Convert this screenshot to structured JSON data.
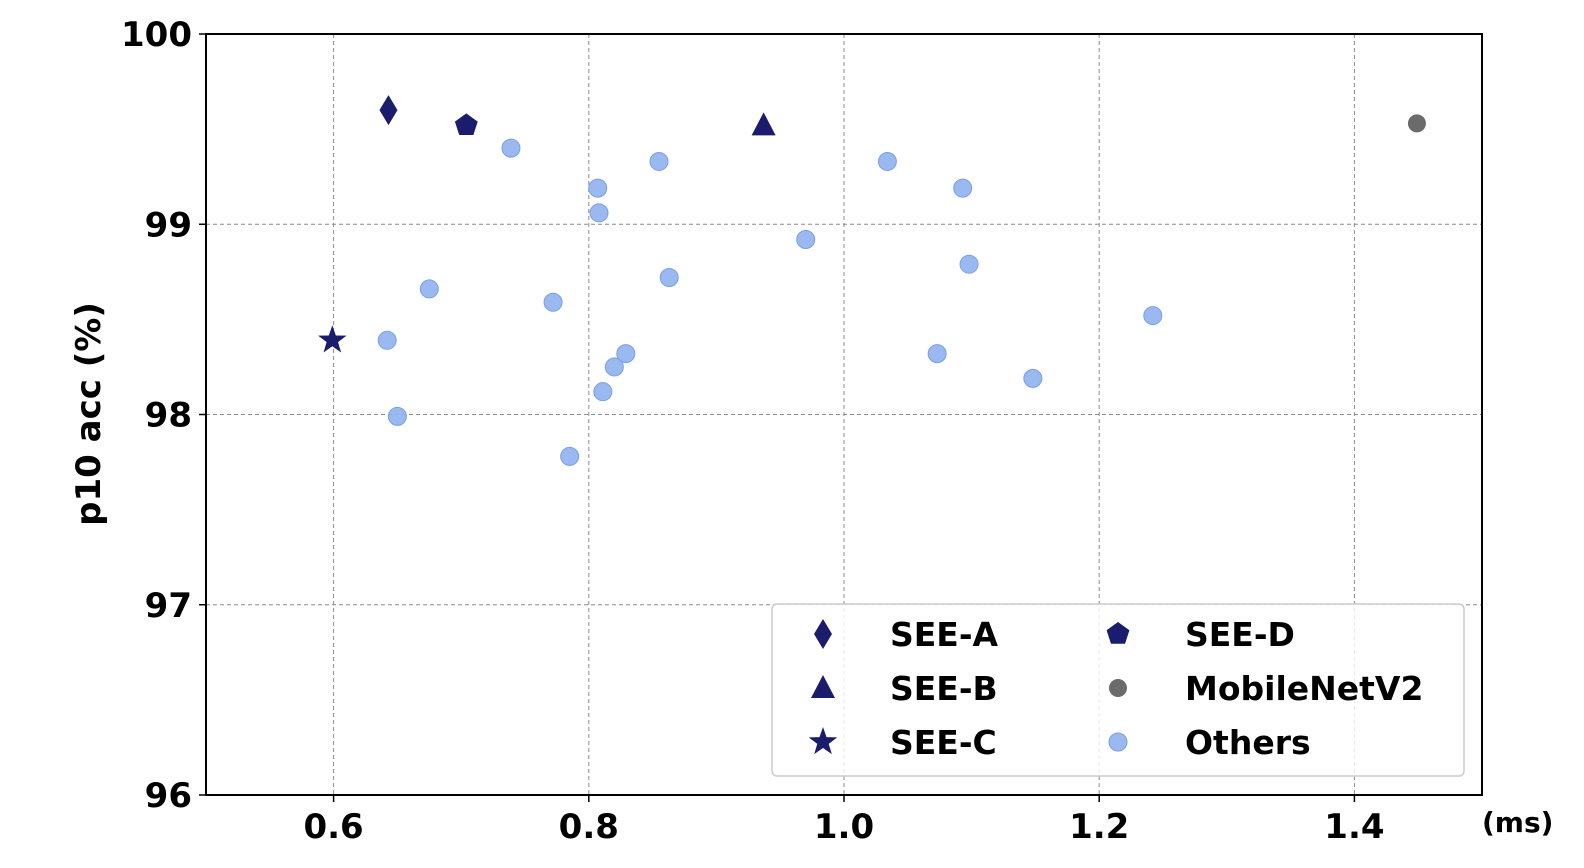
{
  "chart_data": {
    "type": "scatter",
    "xlim": [
      0.5,
      1.5
    ],
    "ylim": [
      96,
      100
    ],
    "xticks": [
      0.6,
      0.8,
      1.0,
      1.2,
      1.4
    ],
    "xtick_labels": [
      "0.6",
      "0.8",
      "1.0",
      "1.2",
      "1.4"
    ],
    "yticks": [
      96,
      97,
      98,
      99,
      100
    ],
    "ytick_labels": [
      "96",
      "97",
      "98",
      "99",
      "100"
    ],
    "xlabel": "(ms)",
    "ylabel": "p10 acc (%)",
    "grid": true,
    "legend_position": "lower-right",
    "series": [
      {
        "name": "SEE-A",
        "marker": "diamond",
        "color": "#1b1c6e",
        "points": [
          {
            "x": 0.643,
            "y": 99.6
          }
        ]
      },
      {
        "name": "SEE-B",
        "marker": "triangle",
        "color": "#1b1c6e",
        "points": [
          {
            "x": 0.937,
            "y": 99.52
          }
        ]
      },
      {
        "name": "SEE-C",
        "marker": "star",
        "color": "#1b1c6e",
        "points": [
          {
            "x": 0.599,
            "y": 98.39
          }
        ]
      },
      {
        "name": "SEE-D",
        "marker": "pentagon",
        "color": "#1b1c6e",
        "points": [
          {
            "x": 0.704,
            "y": 99.52
          }
        ]
      },
      {
        "name": "MobileNetV2",
        "marker": "circle",
        "color": "#6b6b6b",
        "points": [
          {
            "x": 1.449,
            "y": 99.53
          }
        ]
      },
      {
        "name": "Others",
        "marker": "circle",
        "color": "#8fb1ee",
        "points": [
          {
            "x": 0.739,
            "y": 99.4
          },
          {
            "x": 0.855,
            "y": 99.33
          },
          {
            "x": 0.807,
            "y": 99.19
          },
          {
            "x": 0.808,
            "y": 99.06
          },
          {
            "x": 1.034,
            "y": 99.33
          },
          {
            "x": 1.093,
            "y": 99.19
          },
          {
            "x": 0.97,
            "y": 98.92
          },
          {
            "x": 1.098,
            "y": 98.79
          },
          {
            "x": 0.863,
            "y": 98.72
          },
          {
            "x": 0.675,
            "y": 98.66
          },
          {
            "x": 0.772,
            "y": 98.59
          },
          {
            "x": 1.242,
            "y": 98.52
          },
          {
            "x": 0.642,
            "y": 98.39
          },
          {
            "x": 0.829,
            "y": 98.32
          },
          {
            "x": 1.073,
            "y": 98.32
          },
          {
            "x": 0.82,
            "y": 98.25
          },
          {
            "x": 1.148,
            "y": 98.19
          },
          {
            "x": 0.811,
            "y": 98.12
          },
          {
            "x": 0.65,
            "y": 97.99
          },
          {
            "x": 0.785,
            "y": 97.78
          }
        ]
      }
    ]
  }
}
